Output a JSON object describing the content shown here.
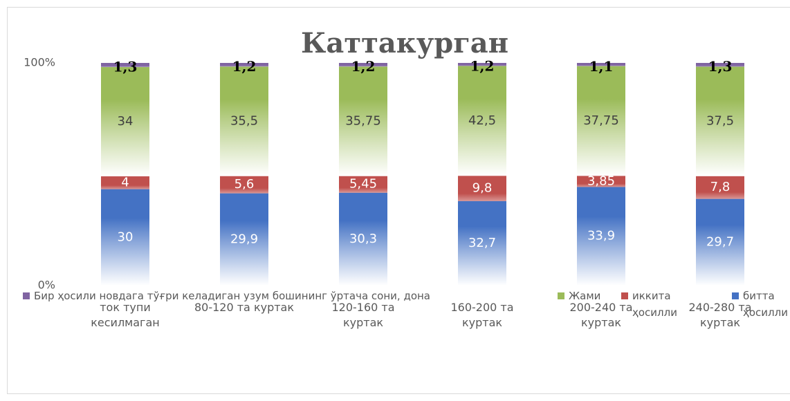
{
  "chart_data": {
    "type": "bar",
    "stacking": "percent",
    "title": "Каттакурган",
    "categories": [
      "ток тупи кесилмаган",
      "80-120 та куртак",
      "120-160 та куртак",
      "160-200 та куртак",
      "200-240 та куртак",
      "240-280 та куртак"
    ],
    "series": [
      {
        "name": "битта ҳосилли",
        "color": "#4472c4",
        "values": [
          30,
          29.9,
          30.3,
          32.7,
          33.9,
          29.7
        ],
        "value_labels": [
          "30",
          "29,9",
          "30,3",
          "32,7",
          "33,9",
          "29,7"
        ]
      },
      {
        "name": "иккита ҳосилли",
        "color": "#c0504d",
        "values": [
          4,
          5.6,
          5.45,
          9.8,
          3.85,
          7.8
        ],
        "value_labels": [
          "4",
          "5,6",
          "5,45",
          "9,8",
          "3,85",
          "7,8"
        ]
      },
      {
        "name": "Жами",
        "color": "#9bbb59",
        "values": [
          34,
          35.5,
          35.75,
          42.5,
          37.75,
          37.5
        ],
        "value_labels": [
          "34",
          "35,5",
          "35,75",
          "42,5",
          "37,75",
          "37,5"
        ]
      },
      {
        "name": "Бир ҳосили новдага тўғри келадиган узум бошининг ўртача сони, дона",
        "color": "#8064a2",
        "values": [
          1.3,
          1.2,
          1.2,
          1.2,
          1.1,
          1.3
        ],
        "value_labels": [
          "1,3",
          "1,2",
          "1,2",
          "1,2",
          "1,1",
          "1,3"
        ]
      }
    ],
    "ylim": [
      0,
      100
    ],
    "yticks": [
      {
        "value": 0,
        "label": "0%"
      },
      {
        "value": 100,
        "label": "100%"
      }
    ],
    "legend": "bottom"
  }
}
